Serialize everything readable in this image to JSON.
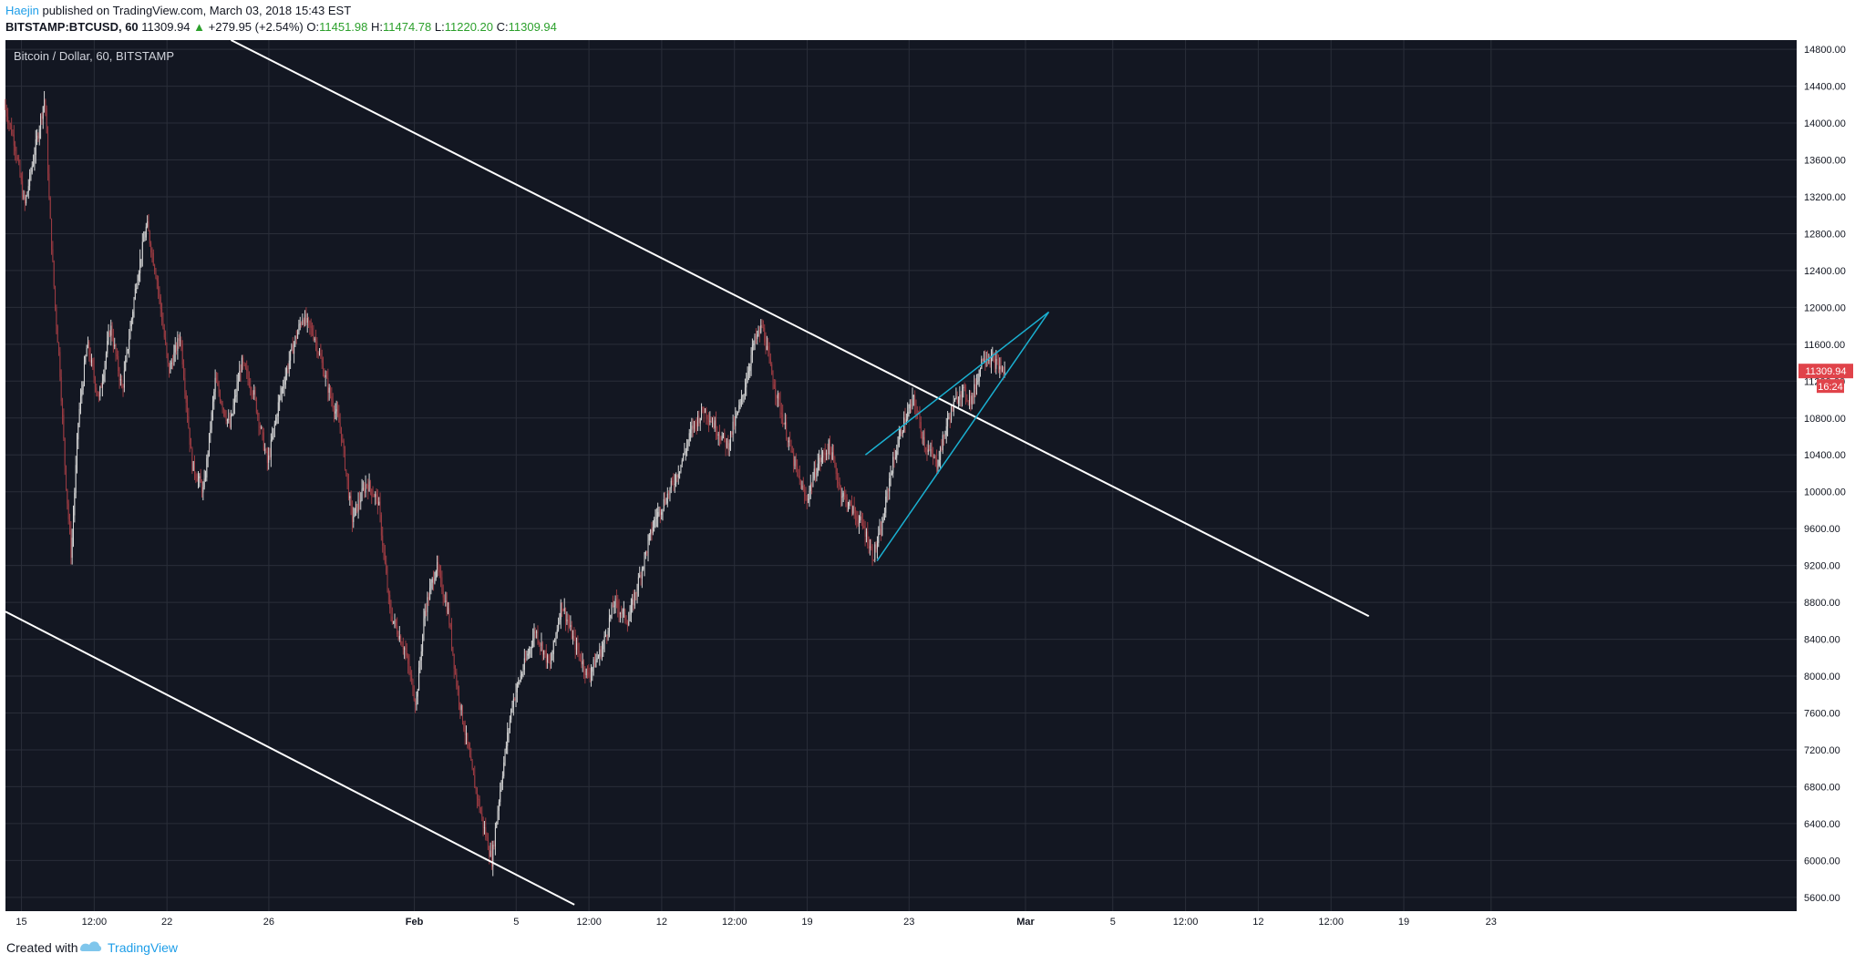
{
  "header": {
    "author": "Haejin",
    "published_text": " published on TradingView.com, March 03, 2018 15:43 EST",
    "symbol": "BITSTAMP:BTCUSD, 60",
    "last": "11309.94",
    "arrow": "▲",
    "change": "+279.95 (+2.54%)",
    "o_label": "O:",
    "o_val": "11451.98",
    "h_label": "H:",
    "h_val": "11474.78",
    "l_label": "L:",
    "l_val": "11220.20",
    "c_label": "C:",
    "c_val": "11309.94"
  },
  "colors": {
    "chart_bg": "#131722",
    "grid": "#2a2e39",
    "axis_text": "#b2b5be",
    "up_candle": "#d6d6d6",
    "down_candle": "#9b3b42",
    "trendline": "#ffffff",
    "wedge": "#1ab0d1",
    "price_tag": "#e0434a"
  },
  "chart_data": {
    "type": "candlestick",
    "title": "Bitcoin / Dollar, 60, BITSTAMP",
    "y_ticks": [
      14800,
      14400,
      14000,
      13600,
      13200,
      12800,
      12400,
      12000,
      11600,
      11200,
      10800,
      10400,
      10000,
      9600,
      9200,
      8800,
      8400,
      8000,
      7600,
      7200,
      6800,
      6400,
      6000,
      5600
    ],
    "y_tick_labels": [
      "14800.00",
      "14400.00",
      "14000.00",
      "13600.00",
      "13200.00",
      "12800.00",
      "12400.00",
      "12000.00",
      "11600.00",
      "11200.00",
      "10800.00",
      "10400.00",
      "10000.00",
      "9600.00",
      "9200.00",
      "8800.00",
      "8400.00",
      "8000.00",
      "7600.00",
      "7200.00",
      "6800.00",
      "6400.00",
      "6000.00",
      "5600.00"
    ],
    "ylim": [
      5450,
      14900
    ],
    "xlim_days": [
      -0.55,
      61.0
    ],
    "x_ticks": [
      {
        "day": 0.0,
        "label": "15"
      },
      {
        "day": 2.5,
        "label": "12:00"
      },
      {
        "day": 5.0,
        "label": "22"
      },
      {
        "day": 8.5,
        "label": "26"
      },
      {
        "day": 13.5,
        "label": "Feb"
      },
      {
        "day": 17.0,
        "label": "5"
      },
      {
        "day": 19.5,
        "label": "12:00"
      },
      {
        "day": 22.0,
        "label": "12"
      },
      {
        "day": 24.5,
        "label": "12:00"
      },
      {
        "day": 27.0,
        "label": "19"
      },
      {
        "day": 30.5,
        "label": "23"
      },
      {
        "day": 34.5,
        "label": "Mar"
      },
      {
        "day": 37.5,
        "label": "5"
      },
      {
        "day": 40.0,
        "label": "12:00"
      },
      {
        "day": 42.5,
        "label": "12"
      },
      {
        "day": 45.0,
        "label": "12:00"
      },
      {
        "day": 47.5,
        "label": "19"
      },
      {
        "day": 50.5,
        "label": "23"
      }
    ],
    "price_path": [
      [
        -0.55,
        14200
      ],
      [
        -0.2,
        13800
      ],
      [
        0.15,
        13100
      ],
      [
        0.5,
        13700
      ],
      [
        0.85,
        14300
      ],
      [
        1.0,
        13100
      ],
      [
        1.2,
        12000
      ],
      [
        1.35,
        11400
      ],
      [
        1.55,
        10200
      ],
      [
        1.75,
        9300
      ],
      [
        2.0,
        10800
      ],
      [
        2.3,
        11600
      ],
      [
        2.7,
        11000
      ],
      [
        3.1,
        11800
      ],
      [
        3.5,
        11100
      ],
      [
        4.0,
        12300
      ],
      [
        4.35,
        12900
      ],
      [
        4.7,
        12300
      ],
      [
        5.1,
        11300
      ],
      [
        5.5,
        11700
      ],
      [
        5.9,
        10300
      ],
      [
        6.3,
        10000
      ],
      [
        6.7,
        11200
      ],
      [
        7.2,
        10700
      ],
      [
        7.6,
        11400
      ],
      [
        8.0,
        11100
      ],
      [
        8.5,
        10300
      ],
      [
        8.9,
        11000
      ],
      [
        9.3,
        11500
      ],
      [
        9.7,
        11900
      ],
      [
        10.1,
        11700
      ],
      [
        10.6,
        11100
      ],
      [
        11.0,
        10700
      ],
      [
        11.4,
        9700
      ],
      [
        11.9,
        10100
      ],
      [
        12.3,
        9900
      ],
      [
        12.7,
        8700
      ],
      [
        13.2,
        8300
      ],
      [
        13.6,
        7700
      ],
      [
        13.9,
        8700
      ],
      [
        14.3,
        9200
      ],
      [
        14.7,
        8700
      ],
      [
        15.0,
        7900
      ],
      [
        15.5,
        7000
      ],
      [
        15.9,
        6400
      ],
      [
        16.2,
        6000
      ],
      [
        16.5,
        6800
      ],
      [
        16.9,
        7700
      ],
      [
        17.3,
        8100
      ],
      [
        17.7,
        8500
      ],
      [
        18.2,
        8100
      ],
      [
        18.6,
        8800
      ],
      [
        19.0,
        8400
      ],
      [
        19.5,
        8000
      ],
      [
        20.0,
        8300
      ],
      [
        20.4,
        8800
      ],
      [
        20.9,
        8600
      ],
      [
        21.3,
        9100
      ],
      [
        21.8,
        9700
      ],
      [
        22.3,
        10000
      ],
      [
        22.7,
        10300
      ],
      [
        23.1,
        10700
      ],
      [
        23.5,
        10900
      ],
      [
        23.9,
        10700
      ],
      [
        24.3,
        10500
      ],
      [
        24.8,
        11000
      ],
      [
        25.2,
        11600
      ],
      [
        25.5,
        11800
      ],
      [
        25.8,
        11300
      ],
      [
        26.2,
        10800
      ],
      [
        26.6,
        10300
      ],
      [
        27.0,
        9900
      ],
      [
        27.4,
        10300
      ],
      [
        27.8,
        10500
      ],
      [
        28.2,
        10000
      ],
      [
        28.6,
        9800
      ],
      [
        29.0,
        9600
      ],
      [
        29.3,
        9300
      ],
      [
        29.6,
        9600
      ],
      [
        29.9,
        10200
      ],
      [
        30.3,
        10700
      ],
      [
        30.7,
        11000
      ],
      [
        31.1,
        10500
      ],
      [
        31.5,
        10300
      ],
      [
        31.9,
        10800
      ],
      [
        32.3,
        11100
      ],
      [
        32.7,
        11000
      ],
      [
        33.1,
        11500
      ],
      [
        33.5,
        11400
      ],
      [
        33.8,
        11300
      ]
    ],
    "annotations": [
      {
        "type": "trendline",
        "color": "#ffffff",
        "from": [
          7.2,
          14900
        ],
        "to": [
          46.3,
          8650
        ]
      },
      {
        "type": "trendline",
        "color": "#ffffff",
        "from": [
          -0.55,
          8700
        ],
        "to": [
          19.0,
          5520
        ]
      },
      {
        "type": "trendline",
        "color": "#1ab0d1",
        "from": [
          29.0,
          10400
        ],
        "to": [
          35.3,
          11950
        ]
      },
      {
        "type": "trendline",
        "color": "#1ab0d1",
        "from": [
          29.4,
          9250
        ],
        "to": [
          35.3,
          11950
        ]
      }
    ],
    "last_price": 11309.94,
    "last_price_label": "11309.94",
    "countdown_label": "16:24"
  },
  "footer": {
    "created_with": "Created with",
    "brand": "TradingView"
  }
}
